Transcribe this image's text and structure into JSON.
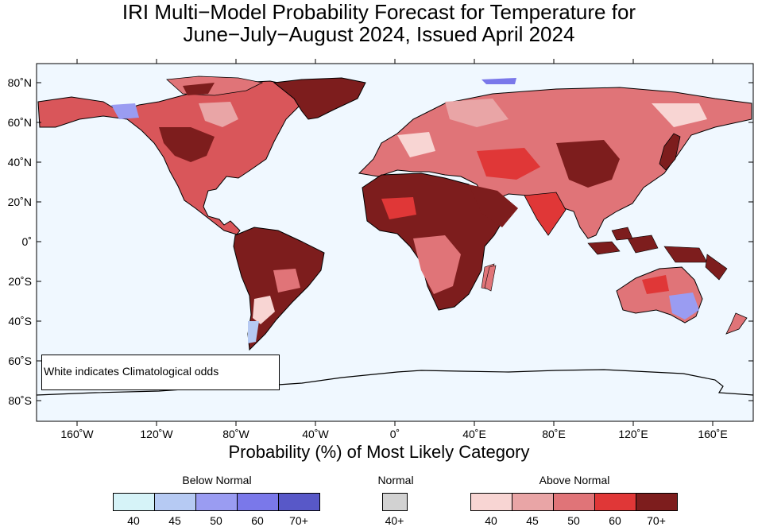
{
  "title_line1": "IRI Multi−Model Probability Forecast for Temperature for",
  "title_line2": "June−July−August 2024, Issued April 2024",
  "x_axis_label": "Probability (%) of Most Likely Category",
  "note": "White indicates Climatological odds",
  "lat_ticks": [
    "80˚N",
    "60˚N",
    "40˚N",
    "20˚N",
    "0˚",
    "20˚S",
    "40˚S",
    "60˚S",
    "80˚S"
  ],
  "lon_ticks": [
    "160˚W",
    "120˚W",
    "80˚W",
    "40˚W",
    "0˚",
    "40˚E",
    "80˚E",
    "120˚E",
    "160˚E"
  ],
  "legend": {
    "below": {
      "title": "Below Normal",
      "labels": [
        "40",
        "45",
        "50",
        "60",
        "70+"
      ],
      "colors": [
        "#d6f3f8",
        "#b6caf3",
        "#9a9cf2",
        "#7a78ea",
        "#5858c8"
      ]
    },
    "normal": {
      "title": "Normal",
      "labels": [
        "40+"
      ],
      "colors": [
        "#d2d2d2"
      ]
    },
    "above": {
      "title": "Above Normal",
      "labels": [
        "40",
        "45",
        "50",
        "60",
        "70+"
      ],
      "colors": [
        "#f8d5d3",
        "#e9a5a6",
        "#e07478",
        "#e03737",
        "#7d1d1d"
      ]
    }
  },
  "colors": {
    "ocean": "#f0f8ff",
    "coast": "#000000",
    "borders": "#9a9a9a"
  }
}
